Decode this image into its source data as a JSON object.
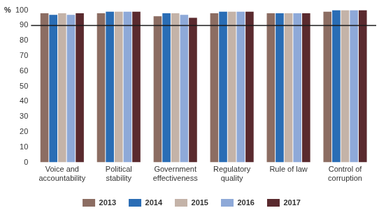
{
  "chart_data": {
    "type": "bar",
    "ylabel": "%",
    "categories": [
      "Voice and accountability",
      "Political stability",
      "Government effectiveness",
      "Regulatory quality",
      "Rule of law",
      "Control of corruption"
    ],
    "series": [
      {
        "name": "2013",
        "color": "#8c6d62",
        "values": [
          98,
          98,
          96,
          98,
          98,
          99
        ]
      },
      {
        "name": "2014",
        "color": "#2a6db5",
        "values": [
          97,
          99,
          98,
          99,
          98,
          100
        ]
      },
      {
        "name": "2015",
        "color": "#c4b3a8",
        "values": [
          98,
          99,
          98,
          99,
          98,
          100
        ]
      },
      {
        "name": "2016",
        "color": "#8ea9d8",
        "values": [
          97,
          99,
          97,
          99,
          98,
          100
        ]
      },
      {
        "name": "2017",
        "color": "#5a2a2e",
        "values": [
          98,
          99,
          95,
          99,
          98,
          100
        ]
      }
    ],
    "reference_line": 90,
    "ylim": [
      0,
      100
    ],
    "yticks": [
      0,
      10,
      20,
      30,
      40,
      50,
      60,
      70,
      80,
      90,
      100
    ],
    "grid": false,
    "legend": "bottom"
  }
}
